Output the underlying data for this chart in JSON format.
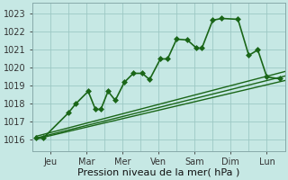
{
  "xlabel": "Pression niveau de la mer( hPa )",
  "bg_color": "#c6e8e4",
  "grid_color": "#9dc8c4",
  "line_color": "#1a6618",
  "xlim": [
    0,
    7
  ],
  "ylim": [
    1015.4,
    1023.6
  ],
  "yticks": [
    1016,
    1017,
    1018,
    1019,
    1020,
    1021,
    1022,
    1023
  ],
  "xtick_labels": [
    "Jeu",
    "Mar",
    "Mer",
    "Ven",
    "Sam",
    "Dim",
    "Lun"
  ],
  "xtick_positions": [
    0.5,
    1.5,
    2.5,
    3.5,
    4.5,
    5.5,
    6.5
  ],
  "jagged": {
    "x": [
      0.1,
      0.3,
      1.0,
      1.2,
      1.55,
      1.75,
      1.9,
      2.1,
      2.3,
      2.55,
      2.8,
      3.05,
      3.25,
      3.55,
      3.75,
      4.0,
      4.3,
      4.55,
      4.7,
      5.0,
      5.25,
      5.7,
      6.0,
      6.25,
      6.5,
      6.85
    ],
    "y": [
      1016.1,
      1016.1,
      1017.5,
      1018.0,
      1018.7,
      1017.7,
      1017.7,
      1018.7,
      1018.2,
      1019.2,
      1019.7,
      1019.7,
      1019.35,
      1020.5,
      1020.5,
      1021.6,
      1021.55,
      1021.1,
      1021.1,
      1022.65,
      1022.75,
      1022.7,
      1020.7,
      1021.0,
      1019.5,
      1019.4
    ],
    "lw": 1.2,
    "ms": 3.0
  },
  "trend_lines": [
    {
      "x": [
        0.1,
        7.0
      ],
      "y": [
        1016.05,
        1019.3
      ]
    },
    {
      "x": [
        0.1,
        7.0
      ],
      "y": [
        1016.1,
        1019.55
      ]
    },
    {
      "x": [
        0.1,
        7.0
      ],
      "y": [
        1016.2,
        1019.8
      ]
    }
  ],
  "xlabel_fontsize": 8,
  "tick_fontsize": 7
}
